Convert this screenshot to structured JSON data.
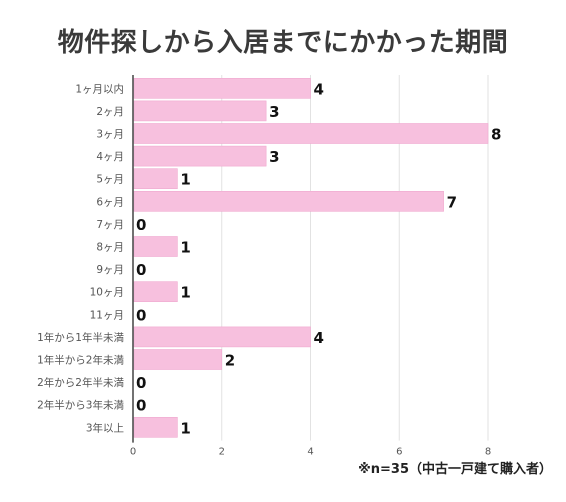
{
  "title": "物件探しから入居までにかかった期間",
  "note": "※n=35（中古一戸建て購入者）",
  "chart_data": {
    "type": "bar",
    "orientation": "horizontal",
    "categories": [
      "1ヶ月以内",
      "2ヶ月",
      "3ヶ月",
      "4ヶ月",
      "5ヶ月",
      "6ヶ月",
      "7ヶ月",
      "8ヶ月",
      "9ヶ月",
      "10ヶ月",
      "11ヶ月",
      "1年から1年半未満",
      "1年半から2年未満",
      "2年から2年半未満",
      "2年半から3年未満",
      "3年以上"
    ],
    "values": [
      4,
      3,
      8,
      3,
      1,
      7,
      0,
      1,
      0,
      1,
      0,
      4,
      2,
      0,
      0,
      1
    ],
    "x_ticks": [
      0,
      2,
      4,
      6,
      8
    ],
    "xlim": [
      0,
      8
    ],
    "grid": true,
    "colors": {
      "bar": "#f7c0de",
      "bar_stroke": "#f0a8cf",
      "grid": "#e2e2e2",
      "axis": "#444444",
      "text": "#555555",
      "value": "#111111"
    }
  }
}
